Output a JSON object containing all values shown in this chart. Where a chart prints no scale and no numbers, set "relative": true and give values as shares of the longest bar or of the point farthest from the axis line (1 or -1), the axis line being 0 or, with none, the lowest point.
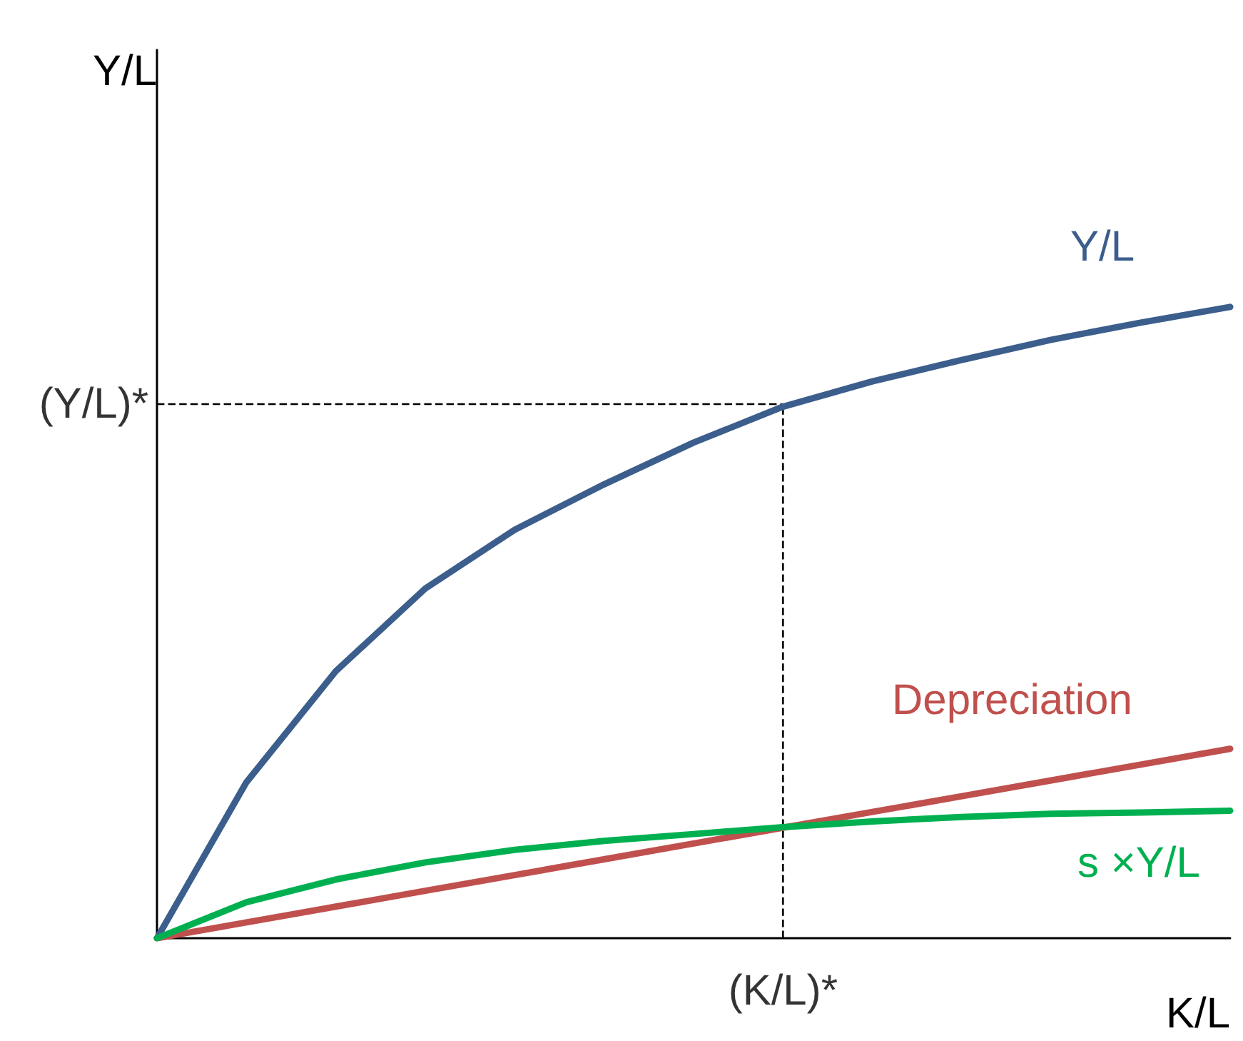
{
  "chart_data": {
    "type": "line",
    "xlabel": "K/L",
    "ylabel": "Y/L",
    "relative": true,
    "marker": "none",
    "line_style": "solid",
    "grid": false,
    "legend": false,
    "categories": [
      null,
      null,
      null,
      null,
      null,
      null,
      null,
      null,
      null,
      null,
      null,
      null,
      null
    ],
    "series": [
      {
        "name": "Y/L",
        "color": "#3b5e8c",
        "values": [
          0,
          0.247,
          0.423,
          0.554,
          0.647,
          0.719,
          0.785,
          0.842,
          0.882,
          0.916,
          0.948,
          0.975,
          1
        ]
      },
      {
        "name": "Depreciation",
        "color": "#c0504d",
        "values": [
          0,
          0.025,
          0.05,
          0.075,
          0.1,
          0.125,
          0.15,
          0.175,
          0.2,
          0.225,
          0.25,
          0.275,
          0.3
        ]
      },
      {
        "name": "s ×Y/L",
        "color": "#00b050",
        "values": [
          0,
          0.057,
          0.093,
          0.12,
          0.14,
          0.154,
          0.165,
          0.176,
          0.185,
          0.192,
          0.197,
          0.199,
          0.202
        ]
      }
    ],
    "ref_lines": [
      {
        "axis": "x",
        "label": "(K/L)*",
        "line_style": "dashed",
        "color": "#000000"
      },
      {
        "axis": "y",
        "value": 0.846,
        "label": "(Y/L)*",
        "line_style": "dashed",
        "color": "#000000"
      }
    ]
  }
}
